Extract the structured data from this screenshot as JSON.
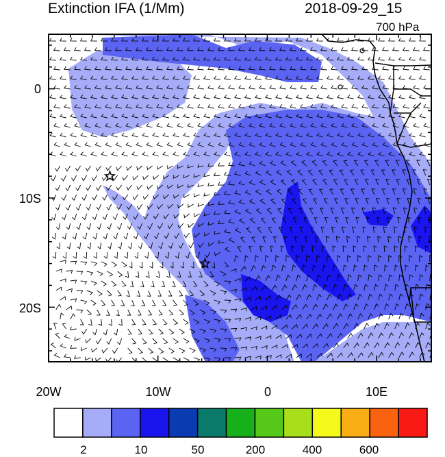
{
  "title_left": "Extinction IFA (1/Mm)",
  "title_right": "2018-09-29_15",
  "level": "700 hPa",
  "lon_ticks": [
    "20W",
    "10W",
    "0",
    "10E"
  ],
  "lat_ticks": [
    "0",
    "10S",
    "20S"
  ],
  "map_extent": {
    "lon": [
      -20,
      15
    ],
    "lat": [
      -25,
      5
    ]
  },
  "markers": [
    {
      "lon": -14.4,
      "lat": -8.0,
      "symbol": "star"
    },
    {
      "lon": -5.7,
      "lat": -16.0,
      "symbol": "star"
    }
  ],
  "colorbar": {
    "colors": [
      "#ffffff",
      "#a6acf7",
      "#5b64f2",
      "#1a14ee",
      "#0b3bb0",
      "#0a7a6a",
      "#16b11a",
      "#55c81a",
      "#a9de1a",
      "#f4f91a",
      "#f9ae16",
      "#f9620f",
      "#f91a16"
    ],
    "tick_labels": [
      "2",
      "10",
      "50",
      "200",
      "400",
      "600"
    ]
  },
  "field_colors": {
    "ocean_light": "#a6acf7",
    "ocean_medium": "#5b64f2",
    "ocean_dark": "#1a14ee",
    "land": "#ffffff"
  }
}
